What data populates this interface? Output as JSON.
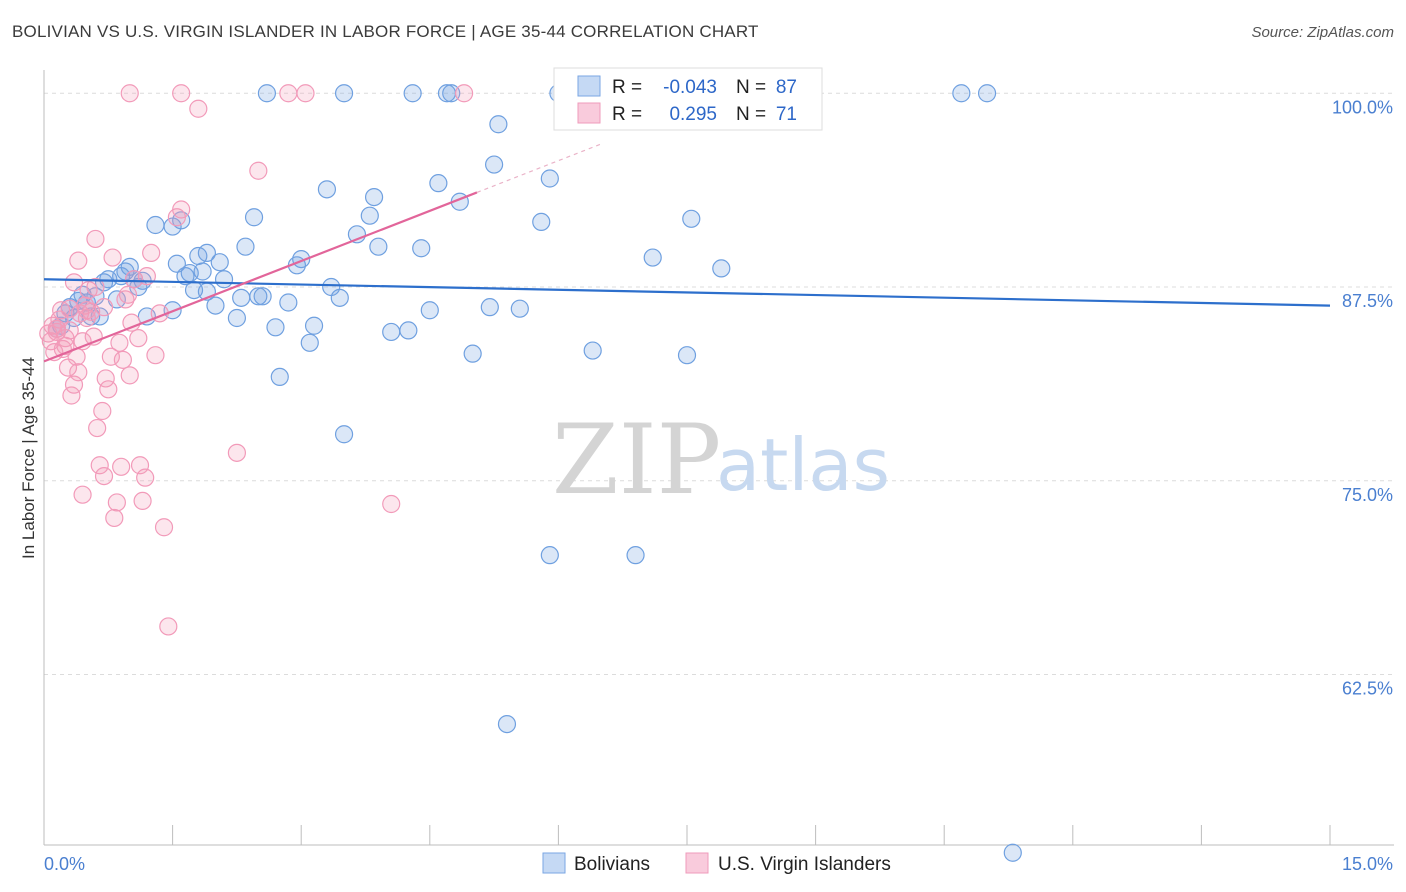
{
  "title": "BOLIVIAN VS U.S. VIRGIN ISLANDER IN LABOR FORCE | AGE 35-44 CORRELATION CHART",
  "source": "Source: ZipAtlas.com",
  "chart_data": {
    "type": "scatter",
    "title": "BOLIVIAN VS U.S. VIRGIN ISLANDER IN LABOR FORCE | AGE 35-44 CORRELATION CHART",
    "xlabel": "",
    "ylabel": "In Labor Force | Age 35-44",
    "xlim": [
      0,
      15
    ],
    "ylim": [
      51.5,
      101.5
    ],
    "x_tick_labels": [
      "0.0%",
      "15.0%"
    ],
    "y_ticks": [
      62.5,
      75.0,
      87.5,
      100.0
    ],
    "y_tick_labels": [
      "62.5%",
      "75.0%",
      "87.5%",
      "100.0%"
    ],
    "grid": true,
    "legend": {
      "position": "top-center",
      "rows": [
        {
          "r_label": "R =",
          "r_value": "-0.043",
          "n_label": "N =",
          "n_value": "87"
        },
        {
          "r_label": "R =",
          "r_value": "0.295",
          "n_label": "N =",
          "n_value": "71"
        }
      ]
    },
    "series": [
      {
        "name": "Bolivians",
        "color": "#6fa0e0",
        "line_color": "#2d6fcc",
        "trend": {
          "x": [
            0,
            15
          ],
          "y": [
            88.0,
            86.3
          ]
        },
        "points": [
          [
            0.15,
            84.8
          ],
          [
            0.25,
            85.8
          ],
          [
            0.35,
            85.5
          ],
          [
            0.45,
            87.0
          ],
          [
            0.5,
            86.5
          ],
          [
            0.55,
            85.6
          ],
          [
            0.65,
            85.6
          ],
          [
            0.7,
            87.8
          ],
          [
            0.75,
            88.0
          ],
          [
            0.85,
            86.7
          ],
          [
            0.95,
            88.5
          ],
          [
            1.0,
            88.8
          ],
          [
            1.05,
            88.0
          ],
          [
            1.1,
            87.5
          ],
          [
            1.2,
            85.6
          ],
          [
            1.3,
            91.5
          ],
          [
            1.5,
            91.4
          ],
          [
            1.55,
            89.0
          ],
          [
            1.6,
            91.8
          ],
          [
            1.65,
            88.2
          ],
          [
            1.7,
            88.4
          ],
          [
            1.75,
            87.3
          ],
          [
            1.8,
            89.5
          ],
          [
            1.85,
            88.5
          ],
          [
            1.9,
            87.2
          ],
          [
            2.0,
            86.3
          ],
          [
            2.05,
            89.1
          ],
          [
            2.1,
            88.0
          ],
          [
            2.25,
            85.5
          ],
          [
            2.3,
            86.8
          ],
          [
            2.35,
            90.1
          ],
          [
            2.45,
            92.0
          ],
          [
            2.5,
            86.9
          ],
          [
            2.55,
            86.9
          ],
          [
            2.7,
            84.9
          ],
          [
            2.75,
            81.7
          ],
          [
            2.85,
            86.5
          ],
          [
            2.95,
            88.9
          ],
          [
            3.0,
            89.3
          ],
          [
            3.1,
            83.9
          ],
          [
            3.15,
            85.0
          ],
          [
            3.3,
            93.8
          ],
          [
            3.35,
            87.5
          ],
          [
            3.45,
            86.8
          ],
          [
            3.5,
            78.0
          ],
          [
            3.65,
            90.9
          ],
          [
            3.8,
            92.1
          ],
          [
            3.85,
            93.3
          ],
          [
            3.9,
            90.1
          ],
          [
            4.05,
            84.6
          ],
          [
            4.25,
            84.7
          ],
          [
            4.4,
            90.0
          ],
          [
            4.5,
            86.0
          ],
          [
            4.6,
            94.2
          ],
          [
            4.75,
            100.0
          ],
          [
            4.85,
            93.0
          ],
          [
            5.0,
            83.2
          ],
          [
            5.2,
            86.2
          ],
          [
            5.25,
            95.4
          ],
          [
            5.3,
            98.0
          ],
          [
            5.55,
            86.1
          ],
          [
            5.8,
            91.7
          ],
          [
            5.9,
            70.2
          ],
          [
            5.9,
            94.5
          ],
          [
            6.0,
            100.0
          ],
          [
            6.4,
            83.4
          ],
          [
            6.9,
            70.2
          ],
          [
            7.1,
            89.4
          ],
          [
            7.5,
            83.1
          ],
          [
            7.55,
            91.9
          ],
          [
            7.9,
            88.7
          ],
          [
            10.7,
            100.0
          ],
          [
            11.0,
            100.0
          ],
          [
            11.3,
            51.0
          ],
          [
            5.4,
            59.3
          ],
          [
            2.6,
            100.0
          ],
          [
            3.5,
            100.0
          ],
          [
            4.3,
            100.0
          ],
          [
            4.7,
            100.0
          ],
          [
            1.5,
            86.0
          ],
          [
            0.3,
            86.2
          ],
          [
            0.6,
            86.9
          ],
          [
            1.15,
            87.9
          ],
          [
            1.9,
            89.7
          ],
          [
            0.2,
            85.0
          ],
          [
            0.4,
            86.6
          ],
          [
            0.9,
            88.2
          ]
        ]
      },
      {
        "name": "U.S. Virgin Islanders",
        "color": "#f29ab9",
        "line_color": "#e2659a",
        "trend": {
          "x": [
            0,
            5.05
          ],
          "y": [
            82.7,
            93.6
          ]
        },
        "points": [
          [
            0.05,
            84.5
          ],
          [
            0.08,
            84.0
          ],
          [
            0.1,
            85.0
          ],
          [
            0.12,
            83.3
          ],
          [
            0.15,
            84.8
          ],
          [
            0.18,
            85.4
          ],
          [
            0.2,
            86.0
          ],
          [
            0.22,
            83.5
          ],
          [
            0.25,
            84.2
          ],
          [
            0.28,
            82.3
          ],
          [
            0.3,
            86.1
          ],
          [
            0.32,
            80.5
          ],
          [
            0.35,
            81.2
          ],
          [
            0.38,
            83.0
          ],
          [
            0.4,
            82.0
          ],
          [
            0.42,
            85.8
          ],
          [
            0.45,
            84.0
          ],
          [
            0.48,
            86.3
          ],
          [
            0.5,
            85.5
          ],
          [
            0.52,
            87.3
          ],
          [
            0.55,
            85.9
          ],
          [
            0.58,
            84.3
          ],
          [
            0.6,
            87.5
          ],
          [
            0.62,
            78.4
          ],
          [
            0.65,
            76.0
          ],
          [
            0.68,
            79.5
          ],
          [
            0.7,
            75.3
          ],
          [
            0.72,
            81.6
          ],
          [
            0.75,
            80.9
          ],
          [
            0.78,
            83.0
          ],
          [
            0.8,
            89.4
          ],
          [
            0.82,
            72.6
          ],
          [
            0.85,
            73.6
          ],
          [
            0.88,
            83.9
          ],
          [
            0.9,
            75.9
          ],
          [
            0.92,
            82.8
          ],
          [
            0.95,
            86.7
          ],
          [
            0.98,
            87.0
          ],
          [
            1.0,
            81.8
          ],
          [
            1.02,
            85.2
          ],
          [
            1.05,
            88.0
          ],
          [
            1.1,
            84.2
          ],
          [
            1.12,
            76.0
          ],
          [
            1.15,
            73.7
          ],
          [
            1.18,
            75.2
          ],
          [
            1.2,
            88.2
          ],
          [
            1.25,
            89.7
          ],
          [
            1.3,
            83.1
          ],
          [
            1.35,
            85.8
          ],
          [
            1.4,
            72.0
          ],
          [
            1.45,
            65.6
          ],
          [
            1.55,
            92.0
          ],
          [
            1.6,
            92.5
          ],
          [
            1.8,
            99.0
          ],
          [
            2.25,
            76.8
          ],
          [
            2.5,
            95.0
          ],
          [
            2.85,
            100.0
          ],
          [
            3.05,
            100.0
          ],
          [
            4.05,
            73.5
          ],
          [
            4.9,
            100.0
          ],
          [
            1.0,
            100.0
          ],
          [
            1.6,
            100.0
          ],
          [
            0.3,
            84.7
          ],
          [
            0.4,
            89.2
          ],
          [
            0.6,
            90.6
          ],
          [
            0.7,
            86.2
          ],
          [
            0.35,
            87.8
          ],
          [
            0.5,
            86.0
          ],
          [
            0.15,
            84.6
          ],
          [
            0.25,
            83.7
          ],
          [
            0.45,
            74.1
          ]
        ]
      }
    ]
  },
  "bottom_legend": {
    "bolivians_label": "Bolivians",
    "virgin_islanders_label": "U.S. Virgin Islanders"
  },
  "watermark": {
    "zip": "ZIP",
    "atlas": "atlas"
  }
}
